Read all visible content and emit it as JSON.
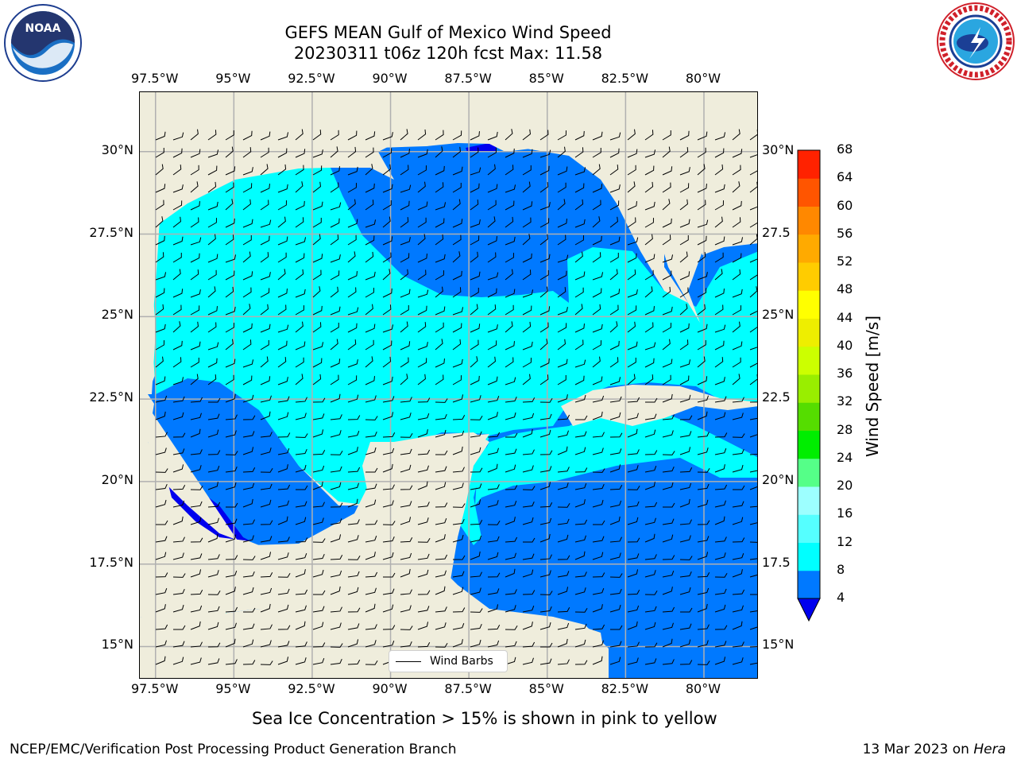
{
  "header": {
    "title_line1": "GEFS MEAN Gulf of Mexico Wind Speed",
    "title_line2": "20230311 t06z 120h fcst   Max: 11.58"
  },
  "logos": {
    "left": "noaa-logo",
    "right": "nws-logo"
  },
  "map": {
    "extent": {
      "lon_min": -98.0,
      "lon_max": -78.25,
      "lat_min": 14.0,
      "lat_max": 31.8
    },
    "lon_ticks": [
      "97.5°W",
      "95°W",
      "92.5°W",
      "90°W",
      "87.5°W",
      "85°W",
      "82.5°W",
      "80°W"
    ],
    "lon_values": [
      -97.5,
      -95,
      -92.5,
      -90,
      -87.5,
      -85,
      -82.5,
      -80
    ],
    "lat_ticks_left": [
      "30°N",
      "27.5°N",
      "25°N",
      "22.5°N",
      "20°N",
      "17.5°N",
      "15°N"
    ],
    "lat_ticks_right": [
      "30°N",
      "27.5",
      "25°N",
      "22.5",
      "20°N",
      "17.5",
      "15°N"
    ],
    "lat_values": [
      30,
      27.5,
      25,
      22.5,
      20,
      17.5,
      15
    ],
    "colors": {
      "land": "#efeddc",
      "band_4_8": "#0079ff",
      "band_8_12": "#00ffff",
      "band_lt4": "#0000ee",
      "grid": "#b0b0b0"
    },
    "legend_label": "Wind Barbs"
  },
  "colorbar": {
    "label": "Wind Speed [m/s]",
    "levels": [
      "4",
      "8",
      "12",
      "16",
      "20",
      "24",
      "28",
      "32",
      "36",
      "40",
      "44",
      "48",
      "52",
      "56",
      "60",
      "64",
      "68"
    ],
    "colors": [
      "#0079ff",
      "#00ffff",
      "#55ffff",
      "#9dffff",
      "#55ff88",
      "#00ee00",
      "#55dd00",
      "#99ee00",
      "#ccff00",
      "#eeee00",
      "#ffff00",
      "#ffcc00",
      "#ffaa00",
      "#ff8800",
      "#ff5500",
      "#ff2200",
      "#ff0000"
    ],
    "under_color": "#0000ee"
  },
  "footer": {
    "note": "Sea Ice Concentration > 15% is shown in pink to yellow",
    "left": "NCEP/EMC/Verification Post Processing Product Generation Branch",
    "right_date": "13 Mar 2023 on",
    "right_machine": "Hera"
  }
}
